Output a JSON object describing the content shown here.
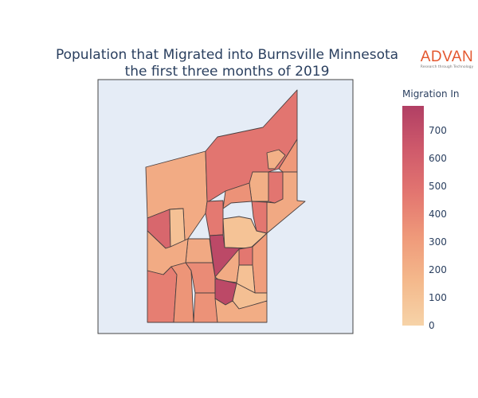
{
  "title_line1": "Population that Migrated into Burnsville Minnesota",
  "title_line2": "the first three months of 2019",
  "logo": {
    "text": "ADVAN",
    "tagline": "Research through Technology",
    "color": "#e4572e"
  },
  "chart_data": {
    "type": "choropleth",
    "colorbar": {
      "title": "Migration In",
      "ticks": [
        "0",
        "100",
        "200",
        "300",
        "400",
        "500",
        "600",
        "700"
      ],
      "range": [
        0,
        790
      ],
      "colorscale": [
        "#f6d3a8",
        "#f4b98c",
        "#ef9a7a",
        "#e37670",
        "#cf5a6b",
        "#b13f64"
      ]
    },
    "background": "#e5ecf6",
    "regions": [
      {
        "id": "A",
        "value": 230
      },
      {
        "id": "B",
        "value": 560
      },
      {
        "id": "C",
        "value": 110
      },
      {
        "id": "D",
        "value": 480
      },
      {
        "id": "E",
        "value": 200
      },
      {
        "id": "F",
        "value": 320
      },
      {
        "id": "G",
        "value": 210
      },
      {
        "id": "H",
        "value": 480
      },
      {
        "id": "I",
        "value": 240
      },
      {
        "id": "J",
        "value": 350
      },
      {
        "id": "K",
        "value": 460
      },
      {
        "id": "L",
        "value": 100
      },
      {
        "id": "M",
        "value": 470
      },
      {
        "id": "N",
        "value": 730
      },
      {
        "id": "O",
        "value": 240
      },
      {
        "id": "P",
        "value": 230
      },
      {
        "id": "Q",
        "value": 440
      },
      {
        "id": "R",
        "value": 340
      },
      {
        "id": "S",
        "value": 380
      },
      {
        "id": "T",
        "value": 350
      },
      {
        "id": "U",
        "value": 470
      },
      {
        "id": "V",
        "value": 300
      },
      {
        "id": "W",
        "value": 230
      },
      {
        "id": "X",
        "value": 110
      },
      {
        "id": "Y",
        "value": 730
      },
      {
        "id": "Z",
        "value": 120
      },
      {
        "id": "AA",
        "value": 220
      }
    ]
  }
}
